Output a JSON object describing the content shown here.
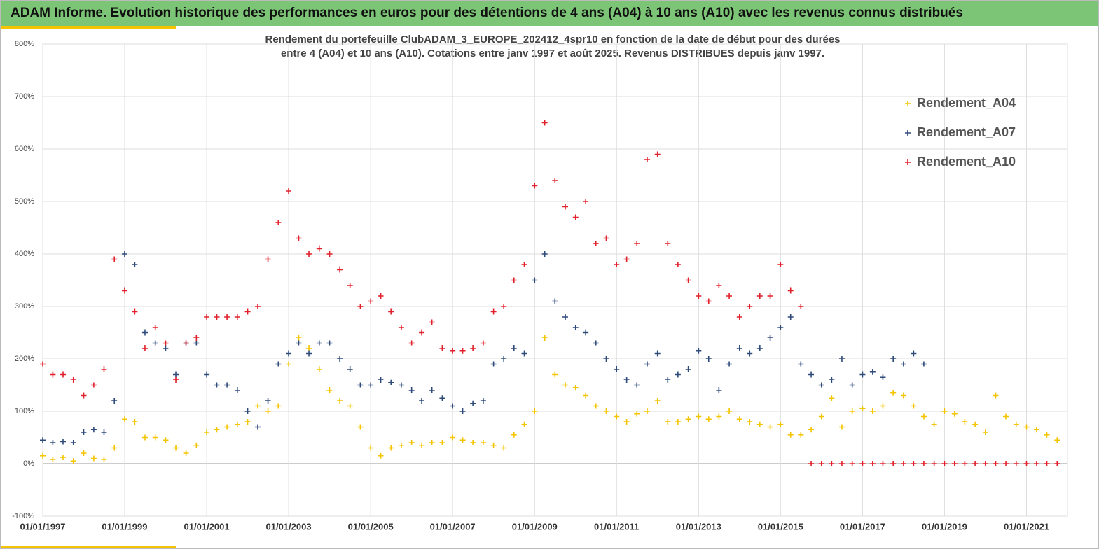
{
  "header": {
    "title": "ADAM Informe. Evolution historique des performances en euros pour des détentions de 4 ans (A04) à 10 ans (A10) avec les revenus connus distribués"
  },
  "chart_data": {
    "type": "scatter",
    "title": "Rendement du portefeuille ClubADAM_3_EUROPE_202412_4spr10  en fonction de la date de début pour des durées",
    "subtitle": "entre 4 (A04) et 10 ans (A10). Cotations entre janv 1997 et août 2025. Revenus DISTRIBUES depuis janv 1997.",
    "x": [
      "01/01/1997",
      "01/04/1997",
      "01/07/1997",
      "01/10/1997",
      "01/01/1998",
      "01/04/1998",
      "01/07/1998",
      "01/10/1998",
      "01/01/1999",
      "01/04/1999",
      "01/07/1999",
      "01/10/1999",
      "01/01/2000",
      "01/04/2000",
      "01/07/2000",
      "01/10/2000",
      "01/01/2001",
      "01/04/2001",
      "01/07/2001",
      "01/10/2001",
      "01/01/2002",
      "01/04/2002",
      "01/07/2002",
      "01/10/2002",
      "01/01/2003",
      "01/04/2003",
      "01/07/2003",
      "01/10/2003",
      "01/01/2004",
      "01/04/2004",
      "01/07/2004",
      "01/10/2004",
      "01/01/2005",
      "01/04/2005",
      "01/07/2005",
      "01/10/2005",
      "01/01/2006",
      "01/04/2006",
      "01/07/2006",
      "01/10/2006",
      "01/01/2007",
      "01/04/2007",
      "01/07/2007",
      "01/10/2007",
      "01/01/2008",
      "01/04/2008",
      "01/07/2008",
      "01/10/2008",
      "01/01/2009",
      "01/04/2009",
      "01/07/2009",
      "01/10/2009",
      "01/01/2010",
      "01/04/2010",
      "01/07/2010",
      "01/10/2010",
      "01/01/2011",
      "01/04/2011",
      "01/07/2011",
      "01/10/2011",
      "01/01/2012",
      "01/04/2012",
      "01/07/2012",
      "01/10/2012",
      "01/01/2013",
      "01/04/2013",
      "01/07/2013",
      "01/10/2013",
      "01/01/2014",
      "01/04/2014",
      "01/07/2014",
      "01/10/2014",
      "01/01/2015",
      "01/04/2015",
      "01/07/2015",
      "01/10/2015",
      "01/01/2016",
      "01/04/2016",
      "01/07/2016",
      "01/10/2016",
      "01/01/2017",
      "01/04/2017",
      "01/07/2017",
      "01/10/2017",
      "01/01/2018",
      "01/04/2018",
      "01/07/2018",
      "01/10/2018",
      "01/01/2019",
      "01/04/2019",
      "01/07/2019",
      "01/10/2019",
      "01/01/2020",
      "01/04/2020",
      "01/07/2020",
      "01/10/2020",
      "01/01/2021",
      "01/04/2021",
      "01/07/2021",
      "01/10/2021"
    ],
    "series": [
      {
        "name": "Rendement_A04",
        "color": "#f5c400",
        "values": [
          15,
          8,
          12,
          5,
          20,
          10,
          8,
          30,
          85,
          80,
          50,
          50,
          45,
          30,
          20,
          35,
          60,
          65,
          70,
          75,
          80,
          110,
          100,
          110,
          190,
          240,
          220,
          180,
          140,
          120,
          110,
          70,
          30,
          15,
          30,
          35,
          40,
          35,
          40,
          40,
          50,
          45,
          40,
          40,
          35,
          30,
          55,
          75,
          100,
          240,
          170,
          150,
          145,
          130,
          110,
          100,
          90,
          80,
          95,
          100,
          120,
          80,
          80,
          85,
          90,
          85,
          90,
          100,
          85,
          80,
          75,
          70,
          75,
          55,
          55,
          65,
          90,
          125,
          70,
          100,
          105,
          100,
          110,
          135,
          130,
          110,
          90,
          75,
          100,
          95,
          80,
          75,
          60,
          130,
          90,
          75,
          70,
          65,
          55,
          45
        ]
      },
      {
        "name": "Rendement_A07",
        "color": "#2e4a7a",
        "values": [
          45,
          40,
          42,
          40,
          60,
          65,
          60,
          120,
          400,
          380,
          250,
          230,
          220,
          170,
          230,
          230,
          170,
          150,
          150,
          140,
          100,
          70,
          120,
          190,
          210,
          230,
          210,
          230,
          230,
          200,
          180,
          150,
          150,
          160,
          155,
          150,
          140,
          120,
          140,
          125,
          110,
          100,
          115,
          120,
          190,
          200,
          220,
          210,
          350,
          400,
          310,
          280,
          260,
          250,
          230,
          200,
          180,
          160,
          150,
          190,
          210,
          160,
          170,
          180,
          215,
          200,
          140,
          190,
          220,
          210,
          220,
          240,
          260,
          280,
          190,
          170,
          150,
          160,
          200,
          150,
          170,
          175,
          165,
          200,
          190,
          210,
          190,
          null,
          null,
          null,
          null,
          null,
          null,
          null,
          null,
          null,
          null,
          null,
          null,
          null
        ]
      },
      {
        "name": "Rendement_A10",
        "color": "#e0202a",
        "values": [
          190,
          170,
          170,
          160,
          130,
          150,
          180,
          390,
          330,
          290,
          220,
          260,
          230,
          160,
          230,
          240,
          280,
          280,
          280,
          280,
          290,
          300,
          390,
          460,
          520,
          430,
          400,
          410,
          400,
          370,
          340,
          300,
          310,
          320,
          290,
          260,
          230,
          250,
          270,
          220,
          215,
          215,
          220,
          230,
          290,
          300,
          350,
          380,
          530,
          650,
          540,
          490,
          470,
          500,
          420,
          430,
          380,
          390,
          420,
          580,
          590,
          420,
          380,
          350,
          320,
          310,
          340,
          320,
          280,
          300,
          320,
          320,
          380,
          330,
          300,
          0,
          0,
          0,
          0,
          0,
          0,
          0,
          0,
          0,
          0,
          0,
          0,
          0,
          0,
          0,
          0,
          0,
          0,
          0,
          0,
          0,
          0,
          0,
          0,
          0
        ]
      }
    ],
    "xlim": [
      "01/01/1997",
      "01/01/2022"
    ],
    "xticks": [
      "01/01/1997",
      "01/01/1999",
      "01/01/2001",
      "01/01/2003",
      "01/01/2005",
      "01/01/2007",
      "01/01/2009",
      "01/01/2011",
      "01/01/2013",
      "01/01/2015",
      "01/01/2017",
      "01/01/2019",
      "01/01/2021"
    ],
    "ylim": [
      -100,
      800
    ],
    "yticks": [
      {
        "value": -100,
        "label": "-100%"
      },
      {
        "value": 0,
        "label": "0%"
      },
      {
        "value": 100,
        "label": "100%"
      },
      {
        "value": 200,
        "label": "200%"
      },
      {
        "value": 300,
        "label": "300%"
      },
      {
        "value": 400,
        "label": "400%"
      },
      {
        "value": 500,
        "label": "500%"
      },
      {
        "value": 600,
        "label": "600%"
      },
      {
        "value": 700,
        "label": "700%"
      },
      {
        "value": 800,
        "label": "800%"
      }
    ],
    "grid": true,
    "legend": "top-right"
  }
}
